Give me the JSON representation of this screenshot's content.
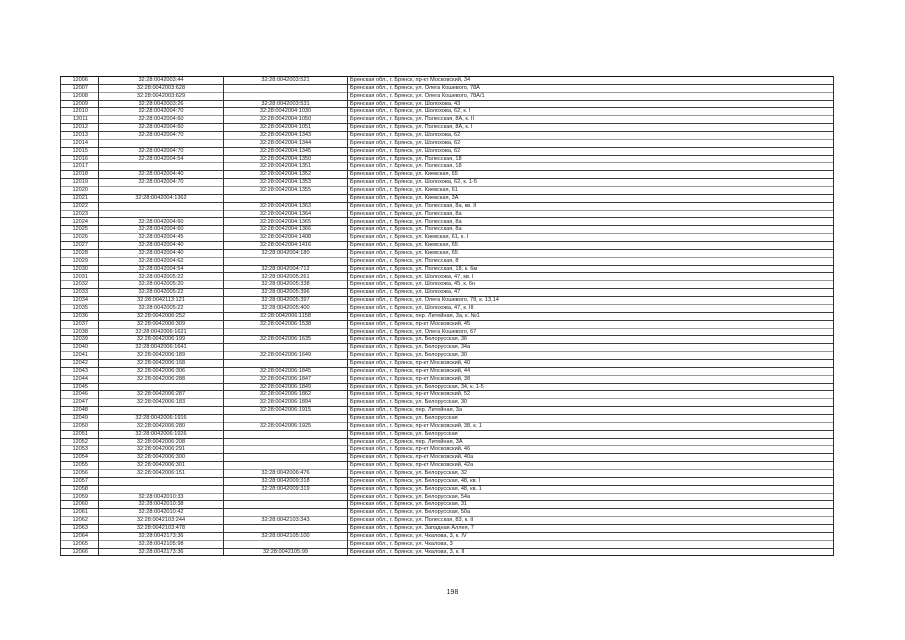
{
  "page_number": "198",
  "rows": [
    [
      "12006",
      "32:28:0042003:44",
      "32:28:0042003:521",
      "Брянская обл., г. Брянск, пр-кт Московский, 34"
    ],
    [
      "12007",
      "32:28:0042003:628",
      "",
      "Брянская обл., г. Брянск, ул. Олега Кошевого, 78А"
    ],
    [
      "12008",
      "32:28:0042003:629",
      "",
      "Брянская обл., г. Брянск, ул. Олега Кошевого, 78А/1"
    ],
    [
      "12009",
      "32:28:0042003:26",
      "32:28:0042003:531",
      "Брянская обл., г. Брянск, ул. Шолохова, 43"
    ],
    [
      "12010",
      "32:28:0042004:70",
      "32:28:0042004:1030",
      "Брянская обл., г. Брянск, ул. Шолохова, 62, к. I"
    ],
    [
      "12011",
      "32:28:0042004:60",
      "32:28:0042004:1050",
      "Брянская обл., г. Брянск, ул. Полесская, 8А, к. II"
    ],
    [
      "12012",
      "32:28:0042004:60",
      "32:28:0042004:1051",
      "Брянская обл., г. Брянск, ул. Полесская, 8А, к. I"
    ],
    [
      "12013",
      "32:28:0042004:70",
      "32:28:0042004:1343",
      "Брянская обл., г. Брянск, ул. Шолохова, 62"
    ],
    [
      "12014",
      "",
      "32:28:0042004:1344",
      "Брянская обл., г. Брянск, ул. Шолохова, 62"
    ],
    [
      "12015",
      "32:28:0042004:70",
      "32:28:0042004:1345",
      "Брянская обл., г. Брянск, ул. Шолохова, 62"
    ],
    [
      "12016",
      "32:28:0042004:54",
      "32:28:0042004:1350",
      "Брянская обл., г. Брянск, ул. Полесская, 18"
    ],
    [
      "12017",
      "",
      "32:28:0042004:1351",
      "Брянская обл., г. Брянск, ул. Полесская, 18"
    ],
    [
      "12018",
      "32:28:0042004:40",
      "32:28:0042004:1352",
      "Брянская обл., г. Брянск, ул. Киевская, 65"
    ],
    [
      "12019",
      "32:28:0042004:70",
      "32:28:0042004:1353",
      "Брянская обл., г. Брянск, ул. Шолохова, 62, к. 1-5"
    ],
    [
      "12020",
      "",
      "32:28:0042004:1355",
      "Брянская обл., г. Брянск, ул. Киевская, 61"
    ],
    [
      "12021",
      "32:28:0042004:1362",
      "",
      "Брянская обл., г. Брянск, ул. Киевская, 3А"
    ],
    [
      "12022",
      "",
      "32:28:0042004:1363",
      "Брянская обл., г. Брянск, ул. Полесская, 8а, кв. II"
    ],
    [
      "12023",
      "",
      "32:28:0042004:1364",
      "Брянская обл., г. Брянск, ул. Полесская, 8а"
    ],
    [
      "12024",
      "32:28:0042004:60",
      "32:28:0042004:1365",
      "Брянская обл., г. Брянск, ул. Полесская, 8а"
    ],
    [
      "12025",
      "32:28:0042004:60",
      "32:28:0042004:1366",
      "Брянская обл., г. Брянск, ул. Полесская, 8а"
    ],
    [
      "12026",
      "32:28:0042004:45",
      "32:28:0042004:1408",
      "Брянская обл., г. Брянск, ул. Киевская, 61, к. I"
    ],
    [
      "12027",
      "32:28:0042004:40",
      "32:28:0042004:1416",
      "Брянская обл., г. Брянск, ул. Киевская, 65"
    ],
    [
      "12028",
      "32:28:0042004:40",
      "32:28:0042004:180",
      "Брянская обл., г. Брянск, ул. Киевская, 65"
    ],
    [
      "12029",
      "32:28:0042004:62",
      "",
      "Брянская обл., г. Брянск, ул. Полесская, 8"
    ],
    [
      "12030",
      "32:28:0042004:54",
      "32:28:0042004:712",
      "Брянская обл., г. Брянск, ул. Полесская, 18, к. 6м"
    ],
    [
      "12031",
      "32:28:0042005:22",
      "32:28:0042005:261",
      "Брянская обл., г. Брянск, ул. Шолохова, 47, кв. I"
    ],
    [
      "12032",
      "32:28:0042005:20",
      "32:28:0042005:338",
      "Брянская обл., г. Брянск, ул. Шолохова, 45, к. 6н"
    ],
    [
      "12033",
      "32:28:0042005:22",
      "32:28:0042005:396",
      "Брянская обл., г. Брянск, ул. Шолохова, 47"
    ],
    [
      "12034",
      "32:28:0042113:121",
      "32:28:0042005:397",
      "Брянская обл., г. Брянск, ул. Олега Кошевого, 78, к. 13,14"
    ],
    [
      "12035",
      "32:28:0042005:22",
      "32:28:0042005:400",
      "Брянская обл., г. Брянск, ул. Шолохова, 47, к. III"
    ],
    [
      "12036",
      "32:28:0042006:252",
      "32:28:0042006:1158",
      "Брянская обл., г. Брянск, пер. Литейная, 3а, к. №1"
    ],
    [
      "12037",
      "32:28:0042006:309",
      "32:28:0042006:1538",
      "Брянская обл., г. Брянск, пр-кт Московский, 45"
    ],
    [
      "12038",
      "32:28:0042006:1621",
      "",
      "Брянская обл., г. Брянск, ул. Олега Кошевого, 67"
    ],
    [
      "12039",
      "32:28:0042006:199",
      "32:28:0042006:1635",
      "Брянская обл., г. Брянск, ул. Белорусская, 36"
    ],
    [
      "12040",
      "32:28:0042006:1641",
      "",
      "Брянская обл., г. Брянск, ул. Белорусская, 34а"
    ],
    [
      "12041",
      "32:28:0042006:189",
      "32:28:0042006:1649",
      "Брянская обл., г. Брянск, ул. Белорусская, 30"
    ],
    [
      "12042",
      "32:28:0042006:168",
      "",
      "Брянская обл., г. Брянск, пр-кт Московский, 40"
    ],
    [
      "12043",
      "32:28:0042006:306",
      "32:28:0042006:1845",
      "Брянская обл., г. Брянск, пр-кт Московский, 44"
    ],
    [
      "12044",
      "32:28:0042006:288",
      "32:28:0042006:1847",
      "Брянская обл., г. Брянск, пр-кт Московский, 38"
    ],
    [
      "12045",
      "",
      "32:28:0042006:1849",
      "Брянская обл., г. Брянск, ул. Белорусская, 34, к. 1-5"
    ],
    [
      "12046",
      "32:28:0042006:287",
      "32:28:0042006:1862",
      "Брянская обл., г. Брянск, пр-кт Московский, 52"
    ],
    [
      "12047",
      "32:28:0042006:183",
      "32:28:0042006:1894",
      "Брянская обл., г. Брянск, ул. Белорусская, 30"
    ],
    [
      "12048",
      "",
      "32:28:0042006:1915",
      "Брянская обл., г. Брянск, пер. Литейная, 3а"
    ],
    [
      "12049",
      "32:28:0042006:1916",
      "",
      "Брянская обл., г. Брянск, ул. Белорусская"
    ],
    [
      "12050",
      "32:28:0042006:280",
      "32:28:0042006:1925",
      "Брянская обл., г. Брянск, пр-кт Московский, 38, к. 1"
    ],
    [
      "12051",
      "32:28:0042006:1926",
      "",
      "Брянская обл., г. Брянск, ул. Белорусская"
    ],
    [
      "12052",
      "32:28:0042006:208",
      "",
      "Брянская обл., г. Брянск, пер. Литейная, 3А"
    ],
    [
      "12053",
      "32:28:0042006:291",
      "",
      "Брянская обл., г. Брянск, пр-кт Московский, 46"
    ],
    [
      "12054",
      "32:28:0042006:300",
      "",
      "Брянская обл., г. Брянск, пр-кт Московский, 40а"
    ],
    [
      "12055",
      "32:28:0042006:301",
      "",
      "Брянская обл., г. Брянск, пр-кт Московский, 42а"
    ],
    [
      "12056",
      "32:28:0042006:151",
      "32:28:0042006:476",
      "Брянская обл., г. Брянск, ул. Белорусская, 32"
    ],
    [
      "12057",
      "",
      "32:28:0042009:318",
      "Брянская обл., г. Брянск, ул. Белорусская, 48, кв. I"
    ],
    [
      "12058",
      "",
      "32:28:0042009:319",
      "Брянская обл., г. Брянск, ул. Белорусская, 48, кв. 1"
    ],
    [
      "12059",
      "32:28:0042010:33",
      "",
      "Брянская обл., г. Брянск, ул. Белорусская, 54а"
    ],
    [
      "12060",
      "32:28:0042010:38",
      "",
      "Брянская обл., г. Брянск, ул. Белорусская, 31"
    ],
    [
      "12061",
      "32:28:0042010:42",
      "",
      "Брянская обл., г. Брянск, ул. Белорусская, 50а"
    ],
    [
      "12062",
      "32:28:0042103:244",
      "32:28:0042103:343",
      "Брянская обл., г. Брянск, ул. Полесская, 83, к. II"
    ],
    [
      "12063",
      "32:28:0042103:478",
      "",
      "Брянская обл., г. Брянск, ул. Западная Аллея, 7"
    ],
    [
      "12064",
      "32:28:0042173:36",
      "32:28:0042105:100",
      "Брянская обл., г. Брянск, ул. Чкалова, 3, к. IV"
    ],
    [
      "12065",
      "32:28:0042105:98",
      "",
      "Брянская обл., г. Брянск, ул. Чкалова, 3"
    ],
    [
      "12066",
      "32:28:0042173:36",
      "32:28:0042105:99",
      "Брянская обл., г. Брянск, ул. Чкалова, 3, к. II"
    ]
  ]
}
